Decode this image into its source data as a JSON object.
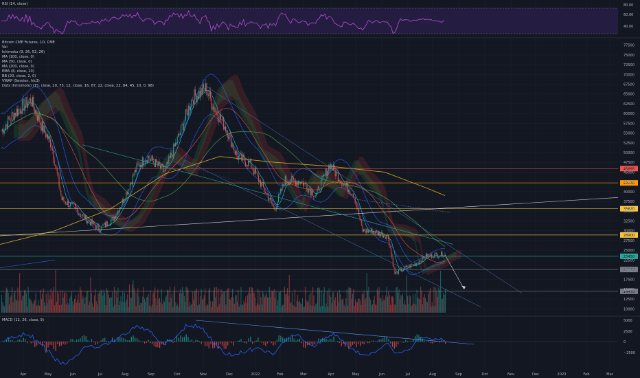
{
  "panes": {
    "rsi": {
      "label": "RSI (14, close)",
      "ticks": [
        "80.00",
        "60.00",
        "40.00"
      ],
      "bands": [
        70,
        30
      ]
    },
    "main": {
      "legend": [
        "Bitcoin CME Futures, 1D, CME",
        "Vol",
        "Ichimoku (9, 26, 52, 26)",
        "MA (100, close, 0)",
        "MA (50, close, 0)",
        "MA (200, close, 0)",
        "EMA (8, close, 20)",
        "BB (20, close, 2, 0)",
        "VWAP (Session, hlc3)",
        "Dots (Intromoto) (15, close, 20, 75, 12, close, 16, 87, 22, close, 22, 84, 45, 10, 0, 98)"
      ],
      "yticks": [
        "77500",
        "75000",
        "72500",
        "70000",
        "67500",
        "65000",
        "62500",
        "60000",
        "57500",
        "55000",
        "52500",
        "50000",
        "47500",
        "45000",
        "42500",
        "40000",
        "37500",
        "35000",
        "32500",
        "30000",
        "27500",
        "25000",
        "22500",
        "20000",
        "17500",
        "15000",
        "12500",
        "10000"
      ],
      "level_labels": [
        {
          "text": "45895",
          "color": "#ef5350",
          "value": 45895
        },
        {
          "text": "42230",
          "color": "#ff9800",
          "value": 42230
        },
        {
          "text": "35620",
          "color": "#f5c542",
          "value": 35620
        },
        {
          "text": "28900",
          "color": "#f5c542",
          "value": 28900
        },
        {
          "text": "23450",
          "color": "#26a69a",
          "value": 23450
        },
        {
          "text": "20060",
          "color": "#787b86",
          "value": 20060
        },
        {
          "text": "14470",
          "color": "#787b86",
          "value": 14470
        }
      ]
    },
    "macd": {
      "label": "MACD (12, 26, close, 9)",
      "yticks": [
        "5000",
        "2500",
        "0",
        "−2500"
      ]
    }
  },
  "xaxis": [
    "Apr",
    "May",
    "Jun",
    "Jul",
    "Aug",
    "Sep",
    "Oct",
    "Nov",
    "Dec",
    "2022",
    "Feb",
    "Mar",
    "Apr",
    "May",
    "Jun",
    "Jul",
    "Aug",
    "Sep",
    "Oct",
    "Nov",
    "Dec",
    "2023",
    "Feb",
    "Mar"
  ],
  "chart_data": {
    "type": "candlestick",
    "x_start": "2021-04",
    "price_range": [
      10000,
      77500
    ],
    "series_price_monthly": [
      {
        "month": "2021-04",
        "close": 57000
      },
      {
        "month": "2021-05",
        "close": 37000
      },
      {
        "month": "2021-06",
        "close": 35000
      },
      {
        "month": "2021-07",
        "close": 41500
      },
      {
        "month": "2021-08",
        "close": 47000
      },
      {
        "month": "2021-09",
        "close": 43800
      },
      {
        "month": "2021-10",
        "close": 61500
      },
      {
        "month": "2021-11",
        "close": 57000
      },
      {
        "month": "2021-12",
        "close": 46300
      },
      {
        "month": "2022-01",
        "close": 38500
      },
      {
        "month": "2022-02",
        "close": 43200
      },
      {
        "month": "2022-03",
        "close": 45600
      },
      {
        "month": "2022-04",
        "close": 38700
      },
      {
        "month": "2022-05",
        "close": 31800
      },
      {
        "month": "2022-06",
        "close": 19900
      },
      {
        "month": "2022-07",
        "close": 23500
      },
      {
        "month": "2022-08",
        "close": 23450
      }
    ],
    "horizontal_levels": [
      45895,
      42230,
      35620,
      28900,
      20060,
      14470
    ],
    "rsi_range": [
      20,
      85
    ],
    "macd_range": [
      -3500,
      5800
    ]
  }
}
